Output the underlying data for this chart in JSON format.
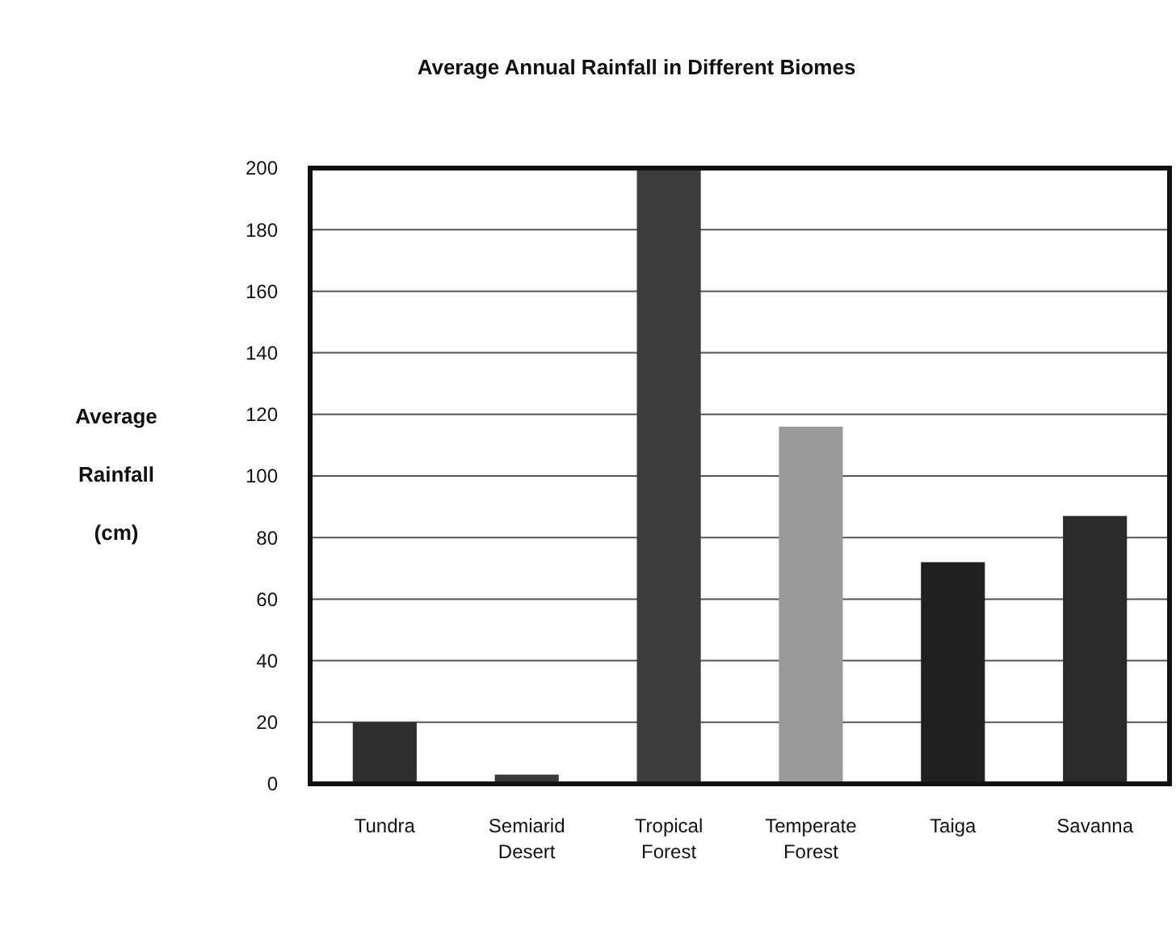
{
  "chart_data": {
    "type": "bar",
    "title": "Average Annual Rainfall in Different Biomes",
    "ylabel": "Average Rainfall (cm)",
    "categories": [
      "Tundra",
      "Semiarid Desert",
      "Tropical Forest",
      "Temperate Forest",
      "Taiga",
      "Savanna"
    ],
    "values": [
      20,
      3,
      200,
      116,
      72,
      87
    ],
    "colors": [
      "#2e2e2e",
      "#3a3a3a",
      "#3c3c3c",
      "#9a9a9a",
      "#202020",
      "#2a2a2a"
    ],
    "ylim": [
      0,
      200
    ],
    "yticks": [
      0,
      20,
      40,
      60,
      80,
      100,
      120,
      140,
      160,
      180,
      200
    ],
    "grid": "y"
  }
}
